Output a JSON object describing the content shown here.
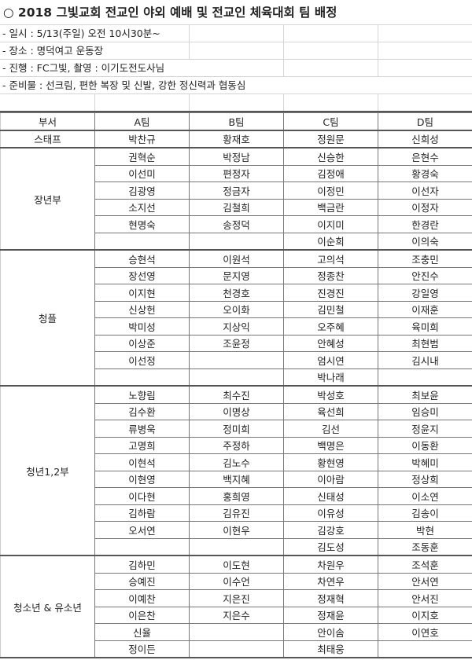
{
  "title": "○ 2018 그빛교회 전교인 야외 예배 및 전교인 체육대회 팀 배정",
  "info": [
    "- 일시 : 5/13(주일) 오전 10시30분~",
    "- 장소 : 명덕여고 운동장",
    "- 진행 : FC그빛, 촬영 : 이기도전도사님",
    "- 준비물 : 선크림, 편한 복장 및 신발, 강한 정신력과 협동심"
  ],
  "table": {
    "headers": [
      "부서",
      "A팀",
      "B팀",
      "C팀",
      "D팀"
    ],
    "groups": [
      {
        "name": "스태프",
        "rows": [
          [
            "박찬규",
            "황재호",
            "정원문",
            "신희성"
          ]
        ]
      },
      {
        "name": "장년부",
        "rows": [
          [
            "권혁순",
            "박정남",
            "신승한",
            "은현수"
          ],
          [
            "이선미",
            "편정자",
            "김정애",
            "황경숙"
          ],
          [
            "김광영",
            "정금자",
            "이정민",
            "이선자"
          ],
          [
            "소지선",
            "김철희",
            "백금란",
            "이정자"
          ],
          [
            "현명숙",
            "송정덕",
            "이지미",
            "한경란"
          ],
          [
            "",
            "",
            "이순희",
            "이의숙"
          ]
        ]
      },
      {
        "name": "청플",
        "rows": [
          [
            "승현석",
            "이원석",
            "고의석",
            "조충민"
          ],
          [
            "장선영",
            "문지영",
            "정종찬",
            "안진수"
          ],
          [
            "이지현",
            "천경호",
            "진경진",
            "강일영"
          ],
          [
            "신상헌",
            "오이화",
            "김민철",
            "이재훈"
          ],
          [
            "박미성",
            "지상익",
            "오주혜",
            "육미희"
          ],
          [
            "이상준",
            "조윤정",
            "안혜성",
            "최현범"
          ],
          [
            "이선정",
            "",
            "엄시연",
            "김시내"
          ],
          [
            "",
            "",
            "박나래",
            ""
          ]
        ]
      },
      {
        "name": "청년1,2부",
        "rows": [
          [
            "노향림",
            "최수진",
            "박성호",
            "최보윤"
          ],
          [
            "김수환",
            "이명상",
            "육선희",
            "임승미"
          ],
          [
            "류병욱",
            "정미희",
            "김선",
            "정윤지"
          ],
          [
            "고명희",
            "주정하",
            "백명은",
            "이동환"
          ],
          [
            "이현석",
            "김노수",
            "황현영",
            "박혜미"
          ],
          [
            "이현영",
            "백지혜",
            "이아람",
            "정상희"
          ],
          [
            "이다현",
            "홍희영",
            "신태성",
            "이소연"
          ],
          [
            "김하람",
            "김유진",
            "이유성",
            "김송이"
          ],
          [
            "오서연",
            "이현우",
            "김강호",
            "박현"
          ],
          [
            "",
            "",
            "김도성",
            "조동훈"
          ]
        ]
      },
      {
        "name": "청소년 & 유소년",
        "rows": [
          [
            "김하민",
            "이도현",
            "차원우",
            "조석훈"
          ],
          [
            "승예진",
            "이수언",
            "차연우",
            "안서연"
          ],
          [
            "이예찬",
            "지은진",
            "정재혁",
            "안서진"
          ],
          [
            "이은찬",
            "지은수",
            "정재윤",
            "이지호"
          ],
          [
            "신율",
            "",
            "안이솜",
            "이연호"
          ],
          [
            "정이든",
            "",
            "최태웅",
            ""
          ]
        ]
      }
    ]
  }
}
